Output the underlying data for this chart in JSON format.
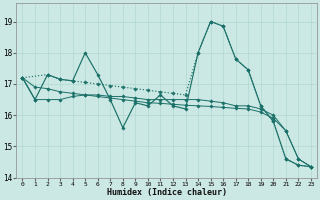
{
  "xlabel": "Humidex (Indice chaleur)",
  "bg_color": "#cce8e4",
  "grid_color": "#b0d8d0",
  "line_color": "#1a7068",
  "xlim": [
    -0.5,
    23.5
  ],
  "ylim": [
    14.0,
    19.6
  ],
  "yticks": [
    14,
    15,
    16,
    17,
    18,
    19
  ],
  "xticks": [
    0,
    1,
    2,
    3,
    4,
    5,
    6,
    7,
    8,
    9,
    10,
    11,
    12,
    13,
    14,
    15,
    16,
    17,
    18,
    19,
    20,
    21,
    22,
    23
  ],
  "line1_x": [
    0,
    1,
    2,
    3,
    4,
    5,
    6,
    7,
    8,
    9,
    10,
    11,
    12,
    13,
    14,
    15,
    16,
    17,
    18,
    19,
    20,
    21,
    22,
    23
  ],
  "line1_y": [
    17.2,
    16.5,
    17.3,
    17.15,
    17.1,
    18.0,
    17.3,
    16.5,
    15.6,
    16.4,
    16.3,
    16.65,
    16.3,
    16.2,
    18.0,
    19.0,
    18.85,
    17.8,
    17.45,
    16.3,
    15.8,
    14.6,
    14.4,
    14.35
  ],
  "line2_x": [
    0,
    1,
    2,
    3,
    4,
    5,
    6,
    7,
    8,
    9,
    10,
    11,
    12,
    13,
    14,
    15,
    16,
    17,
    18,
    19,
    20,
    21,
    22,
    23
  ],
  "line2_y": [
    17.2,
    16.5,
    16.5,
    16.5,
    16.6,
    16.65,
    16.65,
    16.6,
    16.6,
    16.55,
    16.5,
    16.5,
    16.5,
    16.5,
    16.5,
    16.45,
    16.4,
    16.3,
    16.3,
    16.2,
    16.0,
    15.5,
    14.6,
    14.35
  ],
  "line3_x": [
    0,
    1,
    2,
    3,
    4,
    5,
    6,
    7,
    8,
    9,
    10,
    11,
    12,
    13,
    14,
    15,
    16,
    17,
    18,
    19,
    20,
    21,
    22,
    23
  ],
  "line3_y": [
    17.2,
    16.9,
    16.85,
    16.75,
    16.7,
    16.65,
    16.6,
    16.55,
    16.5,
    16.45,
    16.4,
    16.38,
    16.35,
    16.32,
    16.3,
    16.28,
    16.25,
    16.22,
    16.2,
    16.1,
    15.9,
    15.5,
    14.6,
    14.35
  ],
  "line4_x": [
    0,
    2,
    3,
    4,
    5,
    6,
    7,
    8,
    9,
    10,
    11,
    12,
    13,
    14,
    15,
    16,
    17,
    18,
    19,
    20,
    21,
    22,
    23
  ],
  "line4_y": [
    17.2,
    17.3,
    17.15,
    17.1,
    17.05,
    17.0,
    16.95,
    16.9,
    16.85,
    16.8,
    16.75,
    16.7,
    16.65,
    18.0,
    19.0,
    18.85,
    17.8,
    17.45,
    16.3,
    15.8,
    14.6,
    14.4,
    14.35
  ]
}
